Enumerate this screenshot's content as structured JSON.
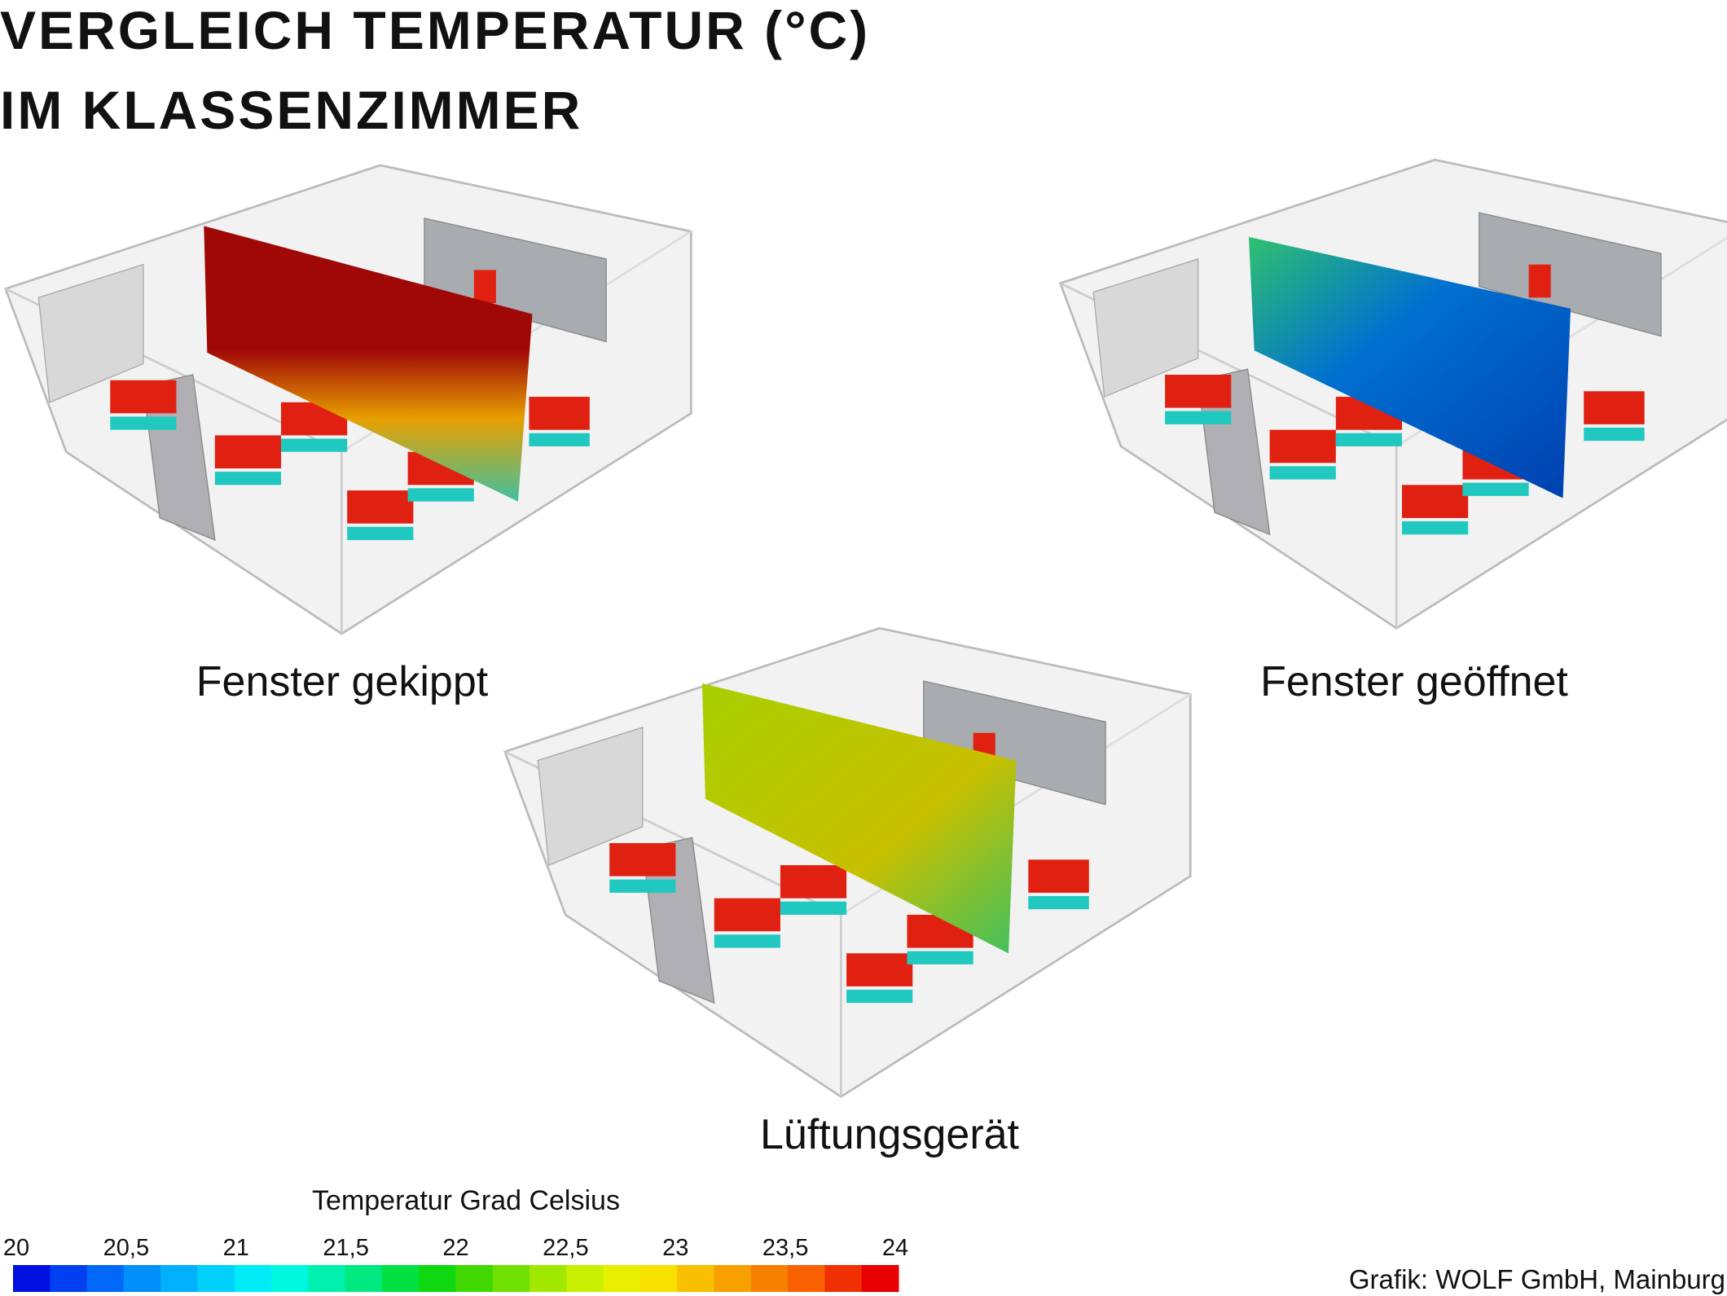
{
  "header": {
    "title_lines": [
      "VERGLEICH TEMPERATUR (°C)",
      "IM KLASSENZIMMER"
    ]
  },
  "panels": [
    {
      "label": "Fenster gekippt"
    },
    {
      "label": "Fenster geöffnet"
    },
    {
      "label": "Lüftungsgerät"
    }
  ],
  "colorbar": {
    "title": "Temperatur Grad Celsius",
    "range": [
      20,
      24
    ],
    "ticks": [
      20,
      {
        "value": 20.5,
        "label": "20,5"
      },
      21,
      {
        "value": 21.5,
        "label": "21,5"
      },
      22,
      {
        "value": 22.5,
        "label": "22,5"
      },
      23,
      {
        "value": 23.5,
        "label": "23,5"
      },
      24
    ],
    "colors": [
      "#0010e0",
      "#0040f0",
      "#0068f8",
      "#0090fc",
      "#00b0fc",
      "#00d0fc",
      "#00ecf8",
      "#00f8e0",
      "#00f0b0",
      "#00e880",
      "#00e040",
      "#10d810",
      "#40d800",
      "#70e000",
      "#a0e800",
      "#c8f000",
      "#e8f000",
      "#f8e000",
      "#f8c000",
      "#f8a000",
      "#f88000",
      "#f86000",
      "#f03000",
      "#e80000"
    ]
  },
  "credit": "Grafik: WOLF GmbH, Mainburg"
}
